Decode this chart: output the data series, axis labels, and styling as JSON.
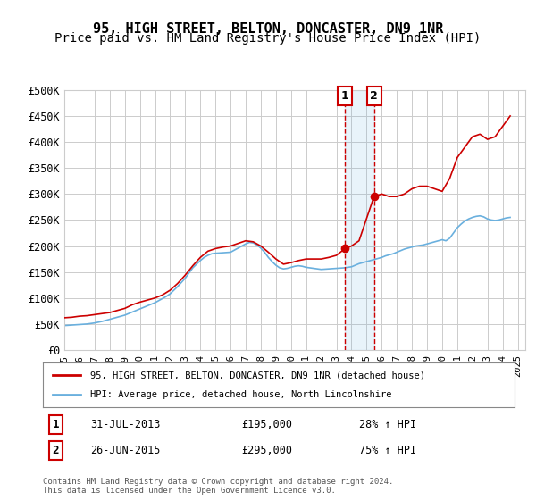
{
  "title": "95, HIGH STREET, BELTON, DONCASTER, DN9 1NR",
  "subtitle": "Price paid vs. HM Land Registry's House Price Index (HPI)",
  "xlabel": "",
  "ylabel": "",
  "ylim": [
    0,
    500000
  ],
  "yticks": [
    0,
    50000,
    100000,
    150000,
    200000,
    250000,
    300000,
    350000,
    400000,
    450000,
    500000
  ],
  "ytick_labels": [
    "£0",
    "£50K",
    "£100K",
    "£150K",
    "£200K",
    "£250K",
    "£300K",
    "£350K",
    "£400K",
    "£450K",
    "£500K"
  ],
  "xlim_start": 1995.0,
  "xlim_end": 2025.5,
  "sale1_date": 2013.58,
  "sale1_price": 195000,
  "sale1_label": "31-JUL-2013",
  "sale1_hpi": "28% ↑ HPI",
  "sale2_date": 2015.49,
  "sale2_price": 295000,
  "sale2_label": "26-JUN-2015",
  "sale2_hpi": "75% ↑ HPI",
  "hpi_color": "#6ab0de",
  "price_color": "#cc0000",
  "legend_line1": "95, HIGH STREET, BELTON, DONCASTER, DN9 1NR (detached house)",
  "legend_line2": "HPI: Average price, detached house, North Lincolnshire",
  "footer": "Contains HM Land Registry data © Crown copyright and database right 2024.\nThis data is licensed under the Open Government Licence v3.0.",
  "bg_color": "#ffffff",
  "grid_color": "#cccccc",
  "title_fontsize": 11,
  "subtitle_fontsize": 10,
  "axis_fontsize": 9,
  "hpi_data_x": [
    1995.0,
    1995.25,
    1995.5,
    1995.75,
    1996.0,
    1996.25,
    1996.5,
    1996.75,
    1997.0,
    1997.25,
    1997.5,
    1997.75,
    1998.0,
    1998.25,
    1998.5,
    1998.75,
    1999.0,
    1999.25,
    1999.5,
    1999.75,
    2000.0,
    2000.25,
    2000.5,
    2000.75,
    2001.0,
    2001.25,
    2001.5,
    2001.75,
    2002.0,
    2002.25,
    2002.5,
    2002.75,
    2003.0,
    2003.25,
    2003.5,
    2003.75,
    2004.0,
    2004.25,
    2004.5,
    2004.75,
    2005.0,
    2005.25,
    2005.5,
    2005.75,
    2006.0,
    2006.25,
    2006.5,
    2006.75,
    2007.0,
    2007.25,
    2007.5,
    2007.75,
    2008.0,
    2008.25,
    2008.5,
    2008.75,
    2009.0,
    2009.25,
    2009.5,
    2009.75,
    2010.0,
    2010.25,
    2010.5,
    2010.75,
    2011.0,
    2011.25,
    2011.5,
    2011.75,
    2012.0,
    2012.25,
    2012.5,
    2012.75,
    2013.0,
    2013.25,
    2013.5,
    2013.75,
    2014.0,
    2014.25,
    2014.5,
    2014.75,
    2015.0,
    2015.25,
    2015.5,
    2015.75,
    2016.0,
    2016.25,
    2016.5,
    2016.75,
    2017.0,
    2017.25,
    2017.5,
    2017.75,
    2018.0,
    2018.25,
    2018.5,
    2018.75,
    2019.0,
    2019.25,
    2019.5,
    2019.75,
    2020.0,
    2020.25,
    2020.5,
    2020.75,
    2021.0,
    2021.25,
    2021.5,
    2021.75,
    2022.0,
    2022.25,
    2022.5,
    2022.75,
    2023.0,
    2023.25,
    2023.5,
    2023.75,
    2024.0,
    2024.25,
    2024.5
  ],
  "hpi_data_y": [
    47000,
    47500,
    48000,
    48500,
    49000,
    49500,
    50000,
    51000,
    52000,
    53500,
    55000,
    57000,
    59000,
    61000,
    63000,
    65000,
    67000,
    70000,
    73000,
    76000,
    79000,
    82000,
    85000,
    88000,
    91000,
    95000,
    99000,
    103000,
    108000,
    115000,
    122000,
    130000,
    138000,
    148000,
    158000,
    165000,
    172000,
    178000,
    182000,
    185000,
    186000,
    186500,
    187000,
    187500,
    188000,
    192000,
    196000,
    200000,
    204000,
    207000,
    206000,
    202000,
    196000,
    188000,
    178000,
    170000,
    163000,
    158000,
    156000,
    157000,
    159000,
    161000,
    162000,
    161000,
    159000,
    158000,
    157000,
    156000,
    155000,
    155500,
    156000,
    156500,
    157000,
    157500,
    158000,
    159000,
    160000,
    163000,
    166000,
    168000,
    170000,
    172000,
    174000,
    176000,
    178000,
    181000,
    183000,
    185000,
    188000,
    191000,
    194000,
    196000,
    198000,
    200000,
    201000,
    202000,
    204000,
    206000,
    208000,
    210000,
    212000,
    210000,
    215000,
    225000,
    235000,
    242000,
    248000,
    252000,
    255000,
    257000,
    258000,
    256000,
    252000,
    250000,
    249000,
    250000,
    252000,
    254000,
    255000
  ],
  "price_data_x": [
    1995.0,
    1995.5,
    1996.0,
    1996.5,
    1997.0,
    1997.5,
    1998.0,
    1998.5,
    1999.0,
    1999.5,
    2000.0,
    2000.5,
    2001.0,
    2001.5,
    2002.0,
    2002.5,
    2003.0,
    2003.5,
    2004.0,
    2004.5,
    2005.0,
    2005.5,
    2006.0,
    2006.5,
    2007.0,
    2007.5,
    2008.0,
    2008.5,
    2009.0,
    2009.5,
    2010.0,
    2010.5,
    2011.0,
    2011.5,
    2012.0,
    2012.5,
    2013.0,
    2013.58,
    2014.0,
    2014.5,
    2015.49,
    2016.0,
    2016.5,
    2017.0,
    2017.5,
    2018.0,
    2018.5,
    2019.0,
    2019.5,
    2020.0,
    2020.5,
    2021.0,
    2021.5,
    2022.0,
    2022.5,
    2023.0,
    2023.5,
    2024.0,
    2024.25,
    2024.5
  ],
  "price_data_y": [
    62000,
    63000,
    65000,
    66000,
    68000,
    70000,
    72000,
    76000,
    80000,
    87000,
    92000,
    96000,
    100000,
    106000,
    115000,
    128000,
    144000,
    162000,
    178000,
    190000,
    195000,
    198000,
    200000,
    205000,
    210000,
    208000,
    200000,
    188000,
    175000,
    165000,
    168000,
    172000,
    175000,
    175000,
    175000,
    178000,
    182000,
    195000,
    200000,
    210000,
    295000,
    300000,
    295000,
    295000,
    300000,
    310000,
    315000,
    315000,
    310000,
    305000,
    330000,
    370000,
    390000,
    410000,
    415000,
    405000,
    410000,
    430000,
    440000,
    450000
  ]
}
